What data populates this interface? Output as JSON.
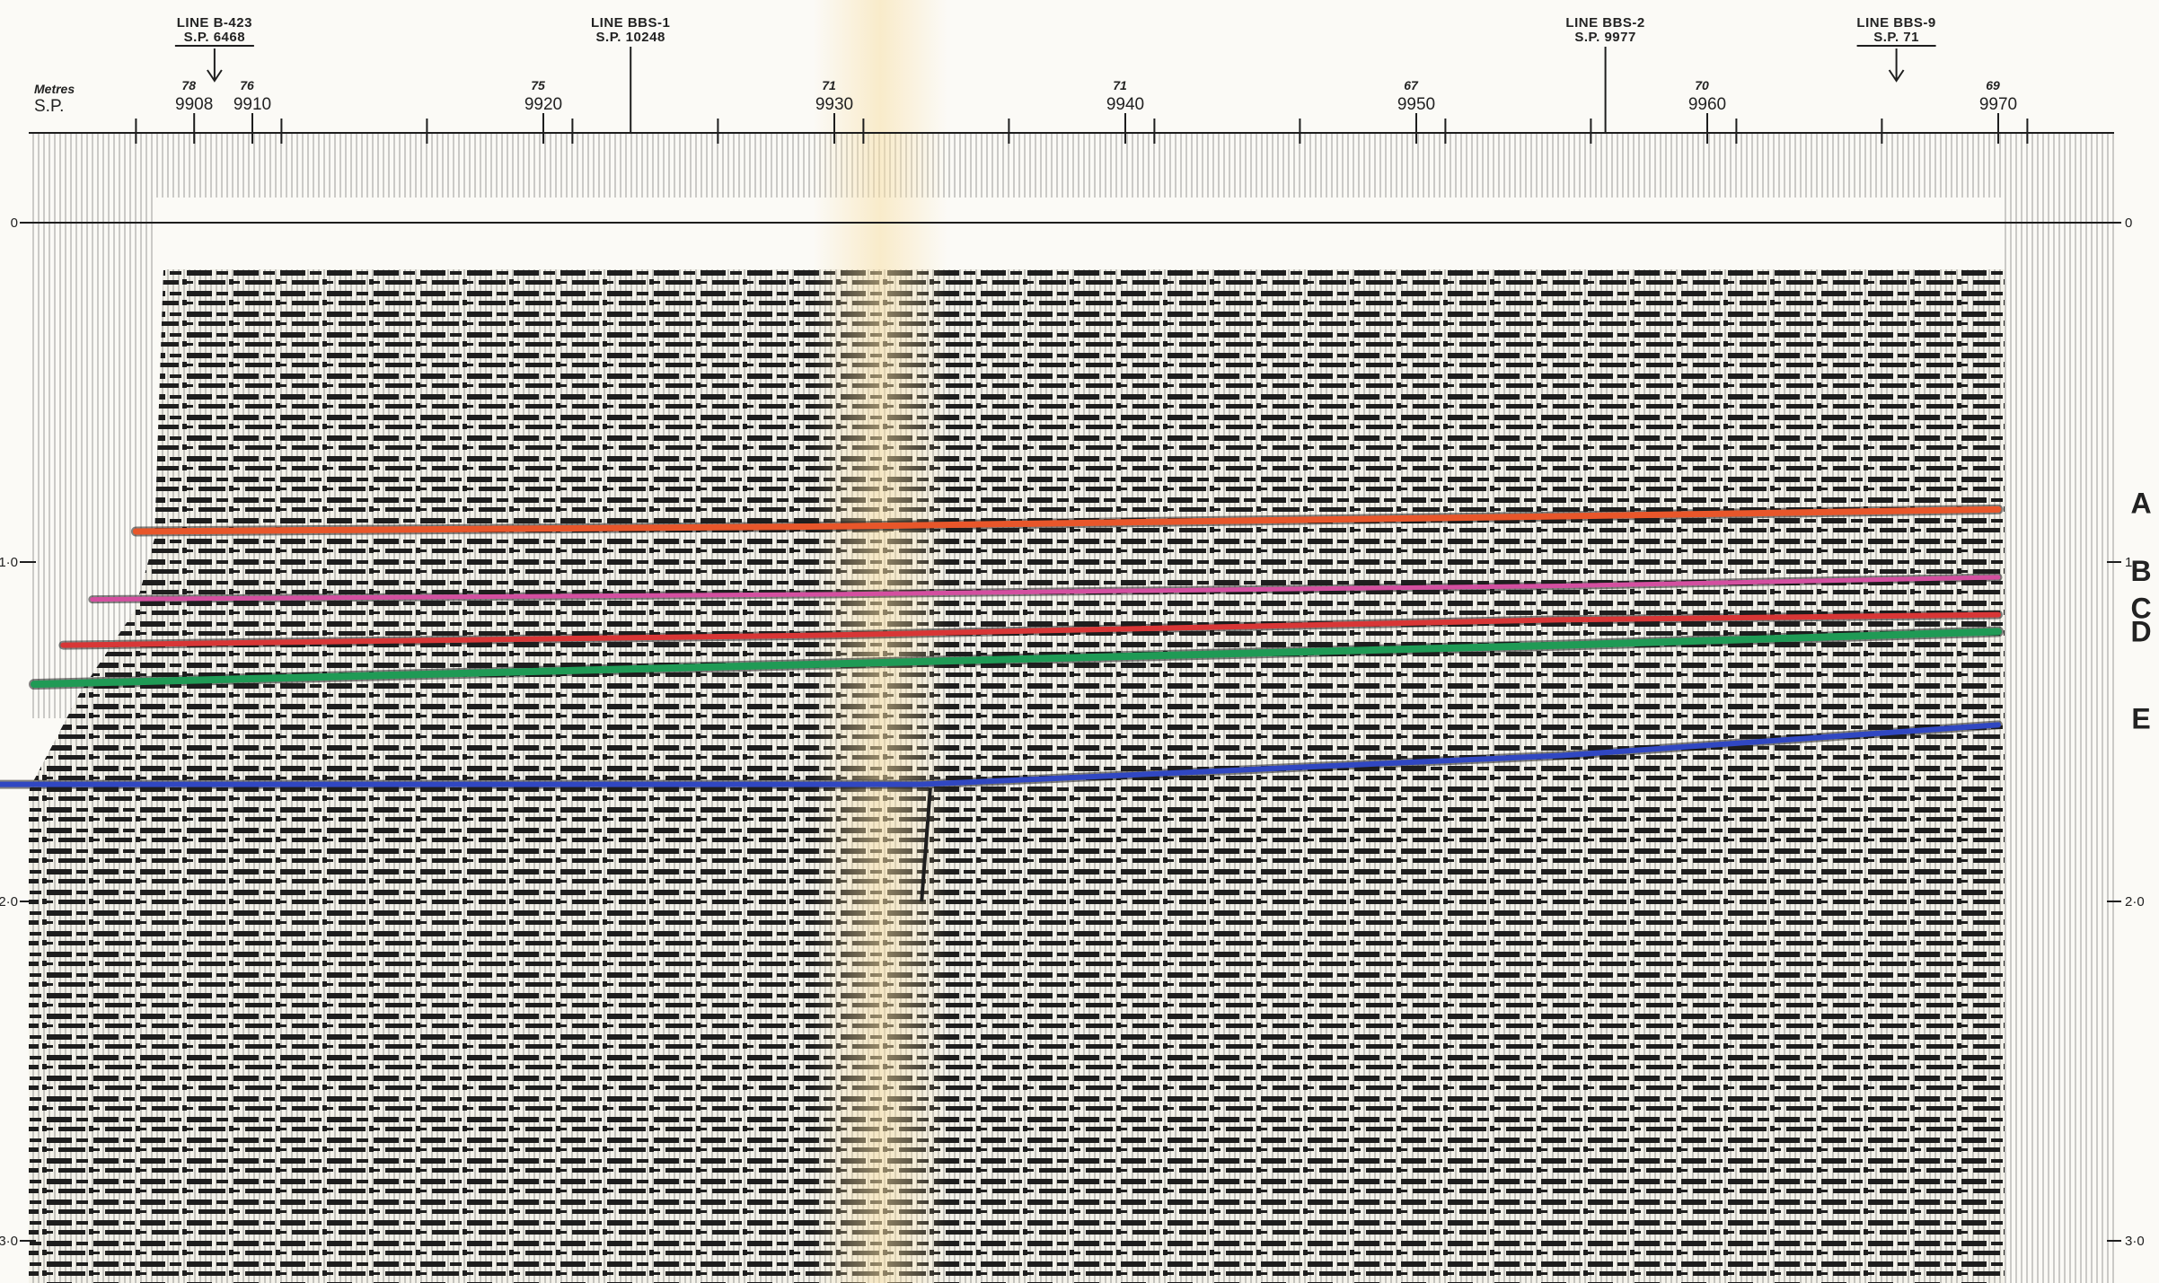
{
  "header": {
    "metres_label": "Metres",
    "sp_label": "S.P."
  },
  "intersections": [
    {
      "line": "LINE B-423",
      "sp": "S.P. 6468",
      "x": 9908.7,
      "arrow": true
    },
    {
      "line": "LINE BBS-1",
      "sp": "S.P. 10248",
      "x": 9923,
      "arrow": false
    },
    {
      "line": "LINE BBS-2",
      "sp": "S.P. 9977",
      "x": 9956.5,
      "arrow": false
    },
    {
      "line": "LINE BBS-9",
      "sp": "S.P. 71",
      "x": 9966.5,
      "arrow": true
    }
  ],
  "shotpoint_ticks": [
    {
      "sp": 9908,
      "label": "9908",
      "elev": "78"
    },
    {
      "sp": 9910,
      "label": "9910",
      "elev": "76"
    },
    {
      "sp": 9920,
      "label": "9920",
      "elev": "75"
    },
    {
      "sp": 9930,
      "label": "9930",
      "elev": "71"
    },
    {
      "sp": 9940,
      "label": "9940",
      "elev": "71"
    },
    {
      "sp": 9950,
      "label": "9950",
      "elev": "67"
    },
    {
      "sp": 9960,
      "label": "9960",
      "elev": "70"
    },
    {
      "sp": 9970,
      "label": "9970",
      "elev": "69"
    }
  ],
  "time_axis": {
    "left_labels": [
      {
        "t": 0,
        "label": "0"
      },
      {
        "t": 1,
        "label": "1·0"
      },
      {
        "t": 2,
        "label": "2·0"
      },
      {
        "t": 3,
        "label": "3·0"
      }
    ],
    "right_labels": [
      {
        "t": 0,
        "label": "0"
      },
      {
        "t": 1,
        "label": "1"
      },
      {
        "t": 2,
        "label": "2·0"
      },
      {
        "t": 3,
        "label": "3·0"
      }
    ]
  },
  "horizons": [
    {
      "name": "A",
      "color": "#e8562a",
      "width": 7,
      "points": [
        [
          9906,
          0.91
        ],
        [
          9930,
          0.895
        ],
        [
          9955,
          0.865
        ],
        [
          9970,
          0.845
        ]
      ]
    },
    {
      "name": "B",
      "color": "#d44fa0",
      "width": 5,
      "points": [
        [
          9904.5,
          1.11
        ],
        [
          9930,
          1.095
        ],
        [
          9955,
          1.07
        ],
        [
          9970,
          1.045
        ]
      ]
    },
    {
      "name": "C",
      "color": "#d83636",
      "width": 6,
      "points": [
        [
          9903.5,
          1.245
        ],
        [
          9930,
          1.215
        ],
        [
          9955,
          1.17
        ],
        [
          9970,
          1.155
        ]
      ]
    },
    {
      "name": "D",
      "color": "#1f9a55",
      "width": 8,
      "points": [
        [
          9902.5,
          1.36
        ],
        [
          9930,
          1.3
        ],
        [
          9955,
          1.245
        ],
        [
          9970,
          1.205
        ]
      ]
    },
    {
      "name": "E",
      "color": "#3047c2",
      "width": 6,
      "points": [
        [
          9901,
          1.655
        ],
        [
          9933,
          1.655
        ],
        [
          9955,
          1.57
        ],
        [
          9970,
          1.48
        ]
      ]
    }
  ],
  "fault": {
    "points": [
      [
        9933.3,
        1.665
      ],
      [
        9933.0,
        2.0
      ]
    ]
  },
  "colors": {
    "paper": "#fbfaf6",
    "ink": "#1e1e1e",
    "stain": "#f7dfa6"
  }
}
